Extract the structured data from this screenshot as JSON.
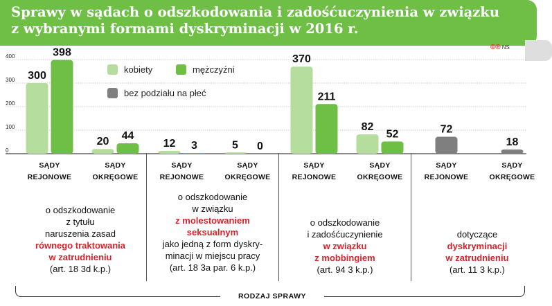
{
  "title_lines": [
    "Sprawy w sądach o odszkodowania i zadośćuczynienia w związku",
    "z wybranymi formami dyskryminacji w 2016 r."
  ],
  "credit": {
    "symbol": "©℗",
    "agency": "NS"
  },
  "colors": {
    "header_green": "#6fbf47",
    "kobiety": "#b5dd9d",
    "mezczyzni": "#6fbf47",
    "bez_podzialu": "#7f7f7f",
    "highlight_red": "#d8232a"
  },
  "legend": [
    {
      "label": "kobiety",
      "icon": "light-green-square"
    },
    {
      "label": "mężczyźni",
      "icon": "green-square"
    },
    {
      "label": "bez podziału na płeć",
      "icon": "gray-square"
    }
  ],
  "chart_data": {
    "type": "bar",
    "title": "Sprawy w sądach o odszkodowania i zadośćuczynienia w związku z wybranymi formami dyskryminacji w 2016 r.",
    "xlabel": "RODZAJ SPRAWY",
    "ylabel": "",
    "ylim": [
      0,
      400
    ],
    "yticks": [
      0,
      100,
      200,
      300,
      400
    ],
    "grid": false,
    "legend_position": "top-left",
    "categories": [
      "SĄDY REJONOWE",
      "SĄDY OKRĘGOWE",
      "SĄDY REJONOWE",
      "SĄDY OKRĘGOWE",
      "SĄDY REJONOWE",
      "SĄDY OKRĘGOWE",
      "SĄDY REJONOWE",
      "SĄDY OKRĘGOWE"
    ],
    "category_lines": [
      [
        "SĄDY",
        "REJONOWE"
      ],
      [
        "SĄDY",
        "OKRĘGOWE"
      ],
      [
        "SĄDY",
        "REJONOWE"
      ],
      [
        "SĄDY",
        "OKRĘGOWE"
      ],
      [
        "SĄDY",
        "REJONOWE"
      ],
      [
        "SĄDY",
        "OKRĘGOWE"
      ],
      [
        "SĄDY",
        "REJONOWE"
      ],
      [
        "SĄDY",
        "OKRĘGOWE"
      ]
    ],
    "series": [
      {
        "name": "kobiety",
        "values": [
          300,
          20,
          12,
          5,
          370,
          82,
          null,
          null
        ]
      },
      {
        "name": "mężczyźni",
        "values": [
          398,
          44,
          3,
          0,
          211,
          52,
          null,
          null
        ]
      },
      {
        "name": "bez podziału na płeć",
        "values": [
          null,
          null,
          null,
          null,
          null,
          null,
          72,
          18
        ]
      }
    ],
    "groups": [
      {
        "lines": [
          {
            "text": "o odszkodowanie",
            "hl": false
          },
          {
            "text": "z tytułu",
            "hl": false
          },
          {
            "text": "naruszenia zasad",
            "hl": false
          },
          {
            "text": "równego traktowania",
            "hl": true
          },
          {
            "text": "w zatrudnieniu",
            "hl": true
          },
          {
            "text": "(art. 18 3d k.p.)",
            "hl": false
          }
        ]
      },
      {
        "lines": [
          {
            "text": "o odszkodowanie",
            "hl": false
          },
          {
            "text": "w związku",
            "hl": false
          },
          {
            "text": "z molestowaniem",
            "hl": true
          },
          {
            "text": "seksualnym",
            "hl": true
          },
          {
            "text": "jako jedną z form dyskry-",
            "hl": false
          },
          {
            "text": "minacji w miejscu pracy",
            "hl": false
          },
          {
            "text": "(art. 18 3a par. 6 k.p.)",
            "hl": false
          }
        ]
      },
      {
        "lines": [
          {
            "text": "o odszkodowanie",
            "hl": false
          },
          {
            "text": "i zadośćuczynienie",
            "hl": false
          },
          {
            "text": "w związku",
            "hl": true
          },
          {
            "text": "z mobbingiem",
            "hl": true
          },
          {
            "text": "(art. 94 3 k.p.)",
            "hl": false
          }
        ]
      },
      {
        "lines": [
          {
            "text": "dotyczące",
            "hl": false
          },
          {
            "text": "dyskryminacji",
            "hl": true
          },
          {
            "text": "w zatrudnieniu",
            "hl": true
          },
          {
            "text": "(art. 11 3 k.p.)",
            "hl": false
          }
        ]
      }
    ]
  }
}
